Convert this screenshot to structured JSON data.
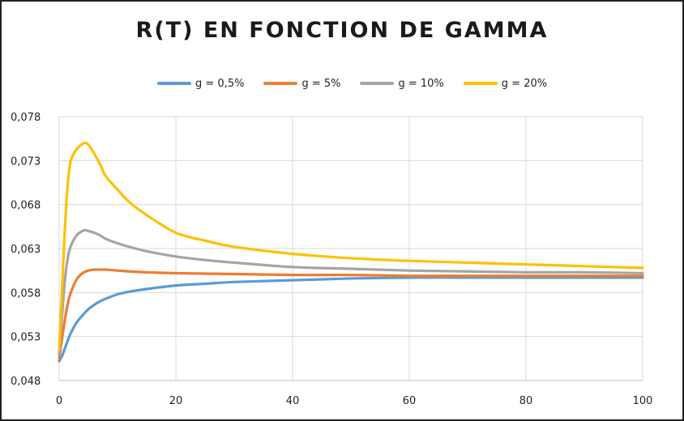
{
  "chart_data": {
    "type": "line",
    "title": "R(T) EN FONCTION DE GAMMA",
    "xlabel": "",
    "ylabel": "",
    "xlim": [
      0,
      100
    ],
    "ylim": [
      0.048,
      0.078
    ],
    "x_ticks": [
      0,
      20,
      40,
      60,
      80,
      100
    ],
    "x_tick_labels": [
      "0",
      "20",
      "40",
      "60",
      "80",
      "100"
    ],
    "y_ticks": [
      0.048,
      0.053,
      0.058,
      0.063,
      0.068,
      0.073,
      0.078
    ],
    "y_tick_labels": [
      "0,048",
      "0,053",
      "0,058",
      "0,063",
      "0,068",
      "0,073",
      "0,078"
    ],
    "grid": true,
    "legend_position": "top",
    "series": [
      {
        "name": "g = 0,5%",
        "color": "#5b9bd5",
        "x": [
          0,
          0.5,
          1,
          1.5,
          2,
          3,
          4,
          5,
          6,
          7,
          8,
          10,
          12,
          15,
          20,
          25,
          30,
          40,
          50,
          60,
          70,
          80,
          90,
          100
        ],
        "y": [
          0.0502,
          0.0508,
          0.0517,
          0.0526,
          0.0534,
          0.0546,
          0.0554,
          0.0561,
          0.0566,
          0.057,
          0.0573,
          0.0578,
          0.0581,
          0.0584,
          0.0588,
          0.059,
          0.0592,
          0.0594,
          0.0596,
          0.0597,
          0.0597,
          0.0597,
          0.0597,
          0.0597
        ]
      },
      {
        "name": "g = 5%",
        "color": "#ed7d31",
        "x": [
          0,
          0.5,
          1,
          1.5,
          2,
          3,
          4,
          5,
          6,
          7,
          8,
          10,
          12,
          15,
          20,
          30,
          40,
          50,
          60,
          70,
          80,
          90,
          100
        ],
        "y": [
          0.0505,
          0.0528,
          0.055,
          0.0568,
          0.058,
          0.0595,
          0.0602,
          0.0605,
          0.0606,
          0.0606,
          0.0606,
          0.0605,
          0.0604,
          0.0603,
          0.0602,
          0.0601,
          0.06,
          0.06,
          0.0599,
          0.0599,
          0.0599,
          0.0599,
          0.0599
        ]
      },
      {
        "name": "g = 10%",
        "color": "#a5a5a5",
        "x": [
          0,
          0.5,
          1,
          1.5,
          2,
          3,
          4,
          4.5,
          5,
          6,
          7,
          8,
          10,
          12,
          15,
          20,
          25,
          30,
          40,
          50,
          60,
          70,
          80,
          90,
          100
        ],
        "y": [
          0.051,
          0.0555,
          0.0595,
          0.062,
          0.0633,
          0.0645,
          0.065,
          0.0651,
          0.065,
          0.0648,
          0.0645,
          0.0641,
          0.0636,
          0.0632,
          0.0627,
          0.0621,
          0.0617,
          0.0614,
          0.0609,
          0.0607,
          0.0605,
          0.0604,
          0.0603,
          0.0603,
          0.0602
        ]
      },
      {
        "name": "g = 20%",
        "color": "#ffc000",
        "x": [
          0,
          0.5,
          1,
          1.5,
          2,
          3,
          4,
          4.5,
          5,
          6,
          7,
          8,
          10,
          12,
          15,
          20,
          25,
          30,
          40,
          50,
          60,
          70,
          80,
          90,
          100
        ],
        "y": [
          0.0515,
          0.0585,
          0.0655,
          0.0705,
          0.073,
          0.0743,
          0.0749,
          0.075,
          0.0748,
          0.0738,
          0.0726,
          0.0712,
          0.0697,
          0.0683,
          0.0668,
          0.0648,
          0.0639,
          0.0632,
          0.0624,
          0.0619,
          0.0616,
          0.0614,
          0.0612,
          0.061,
          0.0608
        ]
      }
    ]
  }
}
